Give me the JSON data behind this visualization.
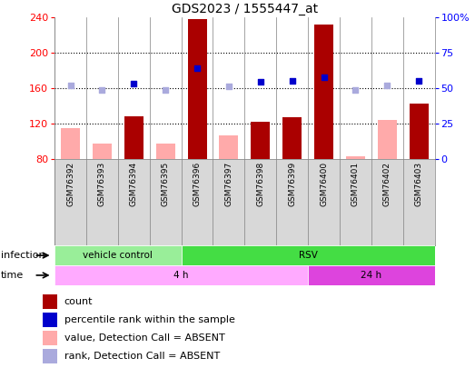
{
  "title": "GDS2023 / 1555447_at",
  "samples": [
    "GSM76392",
    "GSM76393",
    "GSM76394",
    "GSM76395",
    "GSM76396",
    "GSM76397",
    "GSM76398",
    "GSM76399",
    "GSM76400",
    "GSM76401",
    "GSM76402",
    "GSM76403"
  ],
  "ylim_left": [
    80,
    240
  ],
  "ylim_right": [
    0,
    100
  ],
  "yticks_left": [
    80,
    120,
    160,
    200,
    240
  ],
  "yticks_right": [
    0,
    25,
    50,
    75,
    100
  ],
  "yticklabels_right": [
    "0",
    "25",
    "50",
    "75",
    "100%"
  ],
  "count_values": [
    null,
    null,
    128,
    null,
    238,
    null,
    122,
    127,
    232,
    null,
    null,
    143
  ],
  "count_absent_values": [
    115,
    97,
    null,
    97,
    null,
    107,
    null,
    null,
    null,
    83,
    124,
    null
  ],
  "rank_values": [
    null,
    null,
    165,
    null,
    183,
    null,
    167,
    168,
    172,
    null,
    null,
    168
  ],
  "rank_absent_values": [
    163,
    158,
    null,
    158,
    null,
    162,
    null,
    null,
    null,
    158,
    163,
    null
  ],
  "infection_groups": [
    {
      "label": "vehicle control",
      "start": 0,
      "end": 4,
      "color": "#99ee99"
    },
    {
      "label": "RSV",
      "start": 4,
      "end": 12,
      "color": "#44dd44"
    }
  ],
  "time_groups": [
    {
      "label": "4 h",
      "start": 0,
      "end": 8,
      "color": "#ffaaff"
    },
    {
      "label": "24 h",
      "start": 8,
      "end": 12,
      "color": "#dd44dd"
    }
  ],
  "bar_color_present": "#aa0000",
  "bar_color_absent": "#ffaaaa",
  "rank_color_present": "#0000cc",
  "rank_color_absent": "#aaaadd",
  "bg_color": "#d8d8d8",
  "legend_items": [
    {
      "color": "#aa0000",
      "label": "count"
    },
    {
      "color": "#0000cc",
      "label": "percentile rank within the sample"
    },
    {
      "color": "#ffaaaa",
      "label": "value, Detection Call = ABSENT"
    },
    {
      "color": "#aaaadd",
      "label": "rank, Detection Call = ABSENT"
    }
  ]
}
